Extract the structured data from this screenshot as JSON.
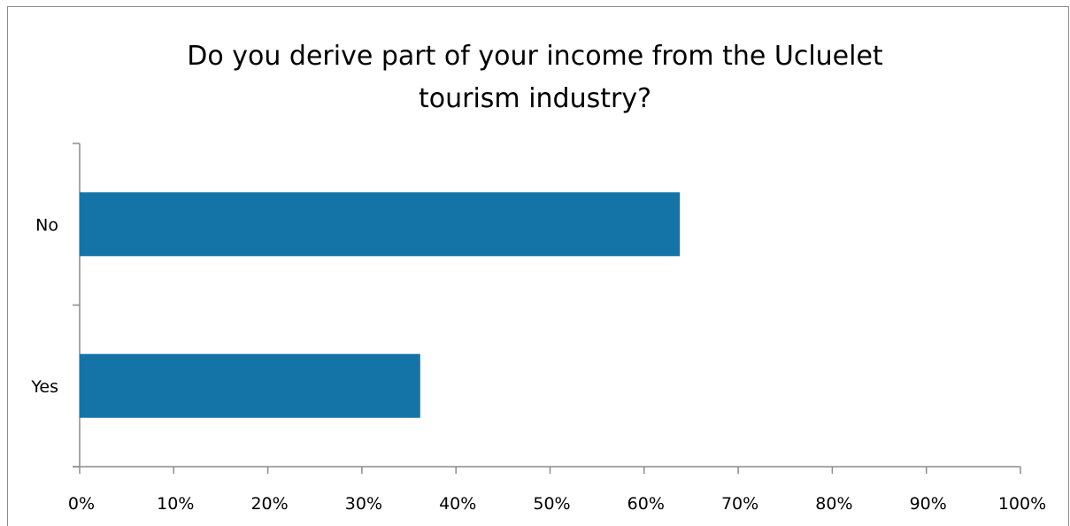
{
  "chart_data": {
    "type": "bar",
    "orientation": "horizontal",
    "title_lines": [
      "Do you derive part of your income from the Ucluelet",
      "tourism industry?"
    ],
    "categories": [
      "No",
      "Yes"
    ],
    "values": [
      63.8,
      36.2
    ],
    "xlim": [
      0,
      100
    ],
    "x_ticks": [
      "0%",
      "10%",
      "20%",
      "30%",
      "40%",
      "50%",
      "60%",
      "70%",
      "80%",
      "90%",
      "100%"
    ],
    "grid": false,
    "legend": "none",
    "colors": {
      "bar": "#1474a8",
      "axis": "#8c8c8c"
    }
  }
}
